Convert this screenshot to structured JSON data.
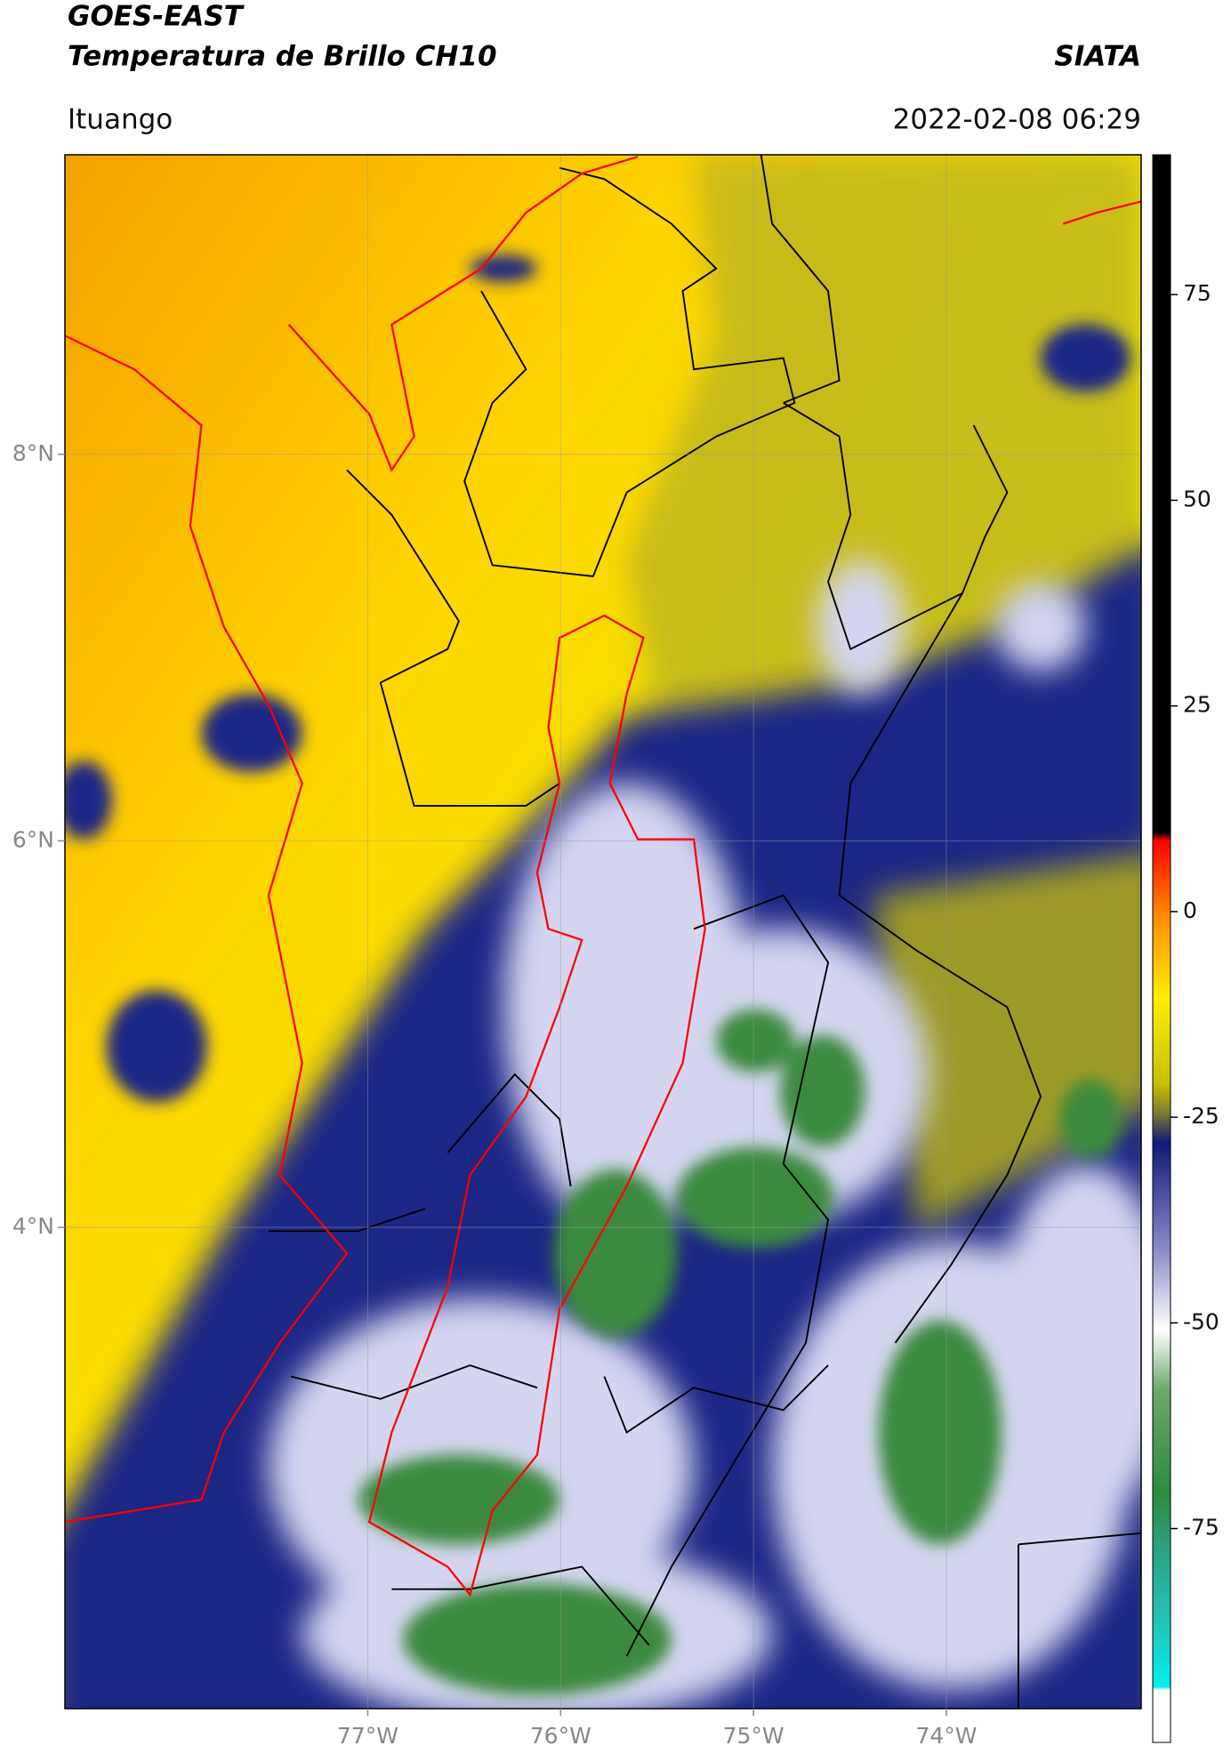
{
  "header": {
    "title": "GOES-EAST",
    "subtitle": "Temperatura de Brillo CH10",
    "source": "SIATA",
    "location": "Ituango",
    "datetime": "2022-02-08 06:29"
  },
  "map": {
    "xlim": [
      -78.57,
      -72.99
    ],
    "ylim": [
      1.51,
      9.55
    ],
    "xticks": [
      {
        "value": -77,
        "label": "77°W"
      },
      {
        "value": -76,
        "label": "76°W"
      },
      {
        "value": -75,
        "label": "75°W"
      },
      {
        "value": -74,
        "label": "74°W"
      }
    ],
    "yticks": [
      {
        "value": 8,
        "label": "8°N"
      },
      {
        "value": 6,
        "label": "6°N"
      },
      {
        "value": 4,
        "label": "4°N"
      }
    ],
    "grid": true
  },
  "colorbar": {
    "clim": [
      -101,
      92
    ],
    "ticks": [
      75,
      50,
      25,
      0,
      -25,
      -50,
      -75
    ]
  }
}
